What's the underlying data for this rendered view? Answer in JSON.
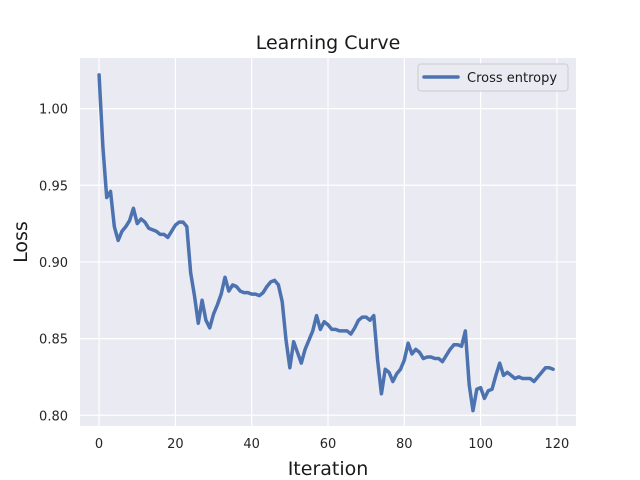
{
  "chart_data": {
    "type": "line",
    "title": "Learning Curve",
    "xlabel": "Iteration",
    "ylabel": "Loss",
    "xlim": [
      -5,
      125
    ],
    "ylim": [
      0.793,
      1.033
    ],
    "xticks": [
      0,
      20,
      40,
      60,
      80,
      100,
      120
    ],
    "yticks": [
      0.8,
      0.85,
      0.9,
      0.95,
      1.0
    ],
    "ytick_labels": [
      "0.80",
      "0.85",
      "0.90",
      "0.95",
      "1.00"
    ],
    "grid": true,
    "legend_position": "top-right",
    "colors": {
      "line": "#4c72b0",
      "plot_bg": "#eaeaf2",
      "grid": "#ffffff"
    },
    "series": [
      {
        "name": "Cross entropy",
        "x": [
          0,
          1,
          2,
          3,
          4,
          5,
          6,
          7,
          8,
          9,
          10,
          11,
          12,
          13,
          14,
          15,
          16,
          17,
          18,
          19,
          20,
          21,
          22,
          23,
          24,
          25,
          26,
          27,
          28,
          29,
          30,
          31,
          32,
          33,
          34,
          35,
          36,
          37,
          38,
          39,
          40,
          41,
          42,
          43,
          44,
          45,
          46,
          47,
          48,
          49,
          50,
          51,
          52,
          53,
          54,
          55,
          56,
          57,
          58,
          59,
          60,
          61,
          62,
          63,
          64,
          65,
          66,
          67,
          68,
          69,
          70,
          71,
          72,
          73,
          74,
          75,
          76,
          77,
          78,
          79,
          80,
          81,
          82,
          83,
          84,
          85,
          86,
          87,
          88,
          89,
          90,
          91,
          92,
          93,
          94,
          95,
          96,
          97,
          98,
          99,
          100,
          101,
          102,
          103,
          104,
          105,
          106,
          107,
          108,
          109,
          110,
          111,
          112,
          113,
          114,
          115,
          116,
          117,
          118,
          119
        ],
        "values": [
          1.022,
          0.975,
          0.942,
          0.946,
          0.923,
          0.914,
          0.92,
          0.923,
          0.927,
          0.935,
          0.925,
          0.928,
          0.926,
          0.922,
          0.921,
          0.92,
          0.918,
          0.918,
          0.916,
          0.92,
          0.924,
          0.926,
          0.926,
          0.923,
          0.893,
          0.878,
          0.86,
          0.875,
          0.862,
          0.857,
          0.866,
          0.872,
          0.879,
          0.89,
          0.881,
          0.885,
          0.884,
          0.881,
          0.88,
          0.88,
          0.879,
          0.879,
          0.878,
          0.88,
          0.884,
          0.887,
          0.888,
          0.885,
          0.874,
          0.849,
          0.831,
          0.848,
          0.841,
          0.834,
          0.843,
          0.849,
          0.855,
          0.865,
          0.856,
          0.861,
          0.859,
          0.856,
          0.856,
          0.855,
          0.855,
          0.855,
          0.853,
          0.857,
          0.862,
          0.864,
          0.864,
          0.862,
          0.865,
          0.836,
          0.814,
          0.83,
          0.828,
          0.822,
          0.827,
          0.83,
          0.836,
          0.847,
          0.84,
          0.843,
          0.841,
          0.837,
          0.838,
          0.838,
          0.837,
          0.837,
          0.835,
          0.839,
          0.843,
          0.846,
          0.846,
          0.845,
          0.855,
          0.82,
          0.803,
          0.817,
          0.818,
          0.811,
          0.816,
          0.817,
          0.826,
          0.834,
          0.826,
          0.828,
          0.826,
          0.824,
          0.825,
          0.824,
          0.824,
          0.824,
          0.822,
          0.825,
          0.828,
          0.831,
          0.831,
          0.83
        ]
      }
    ]
  }
}
